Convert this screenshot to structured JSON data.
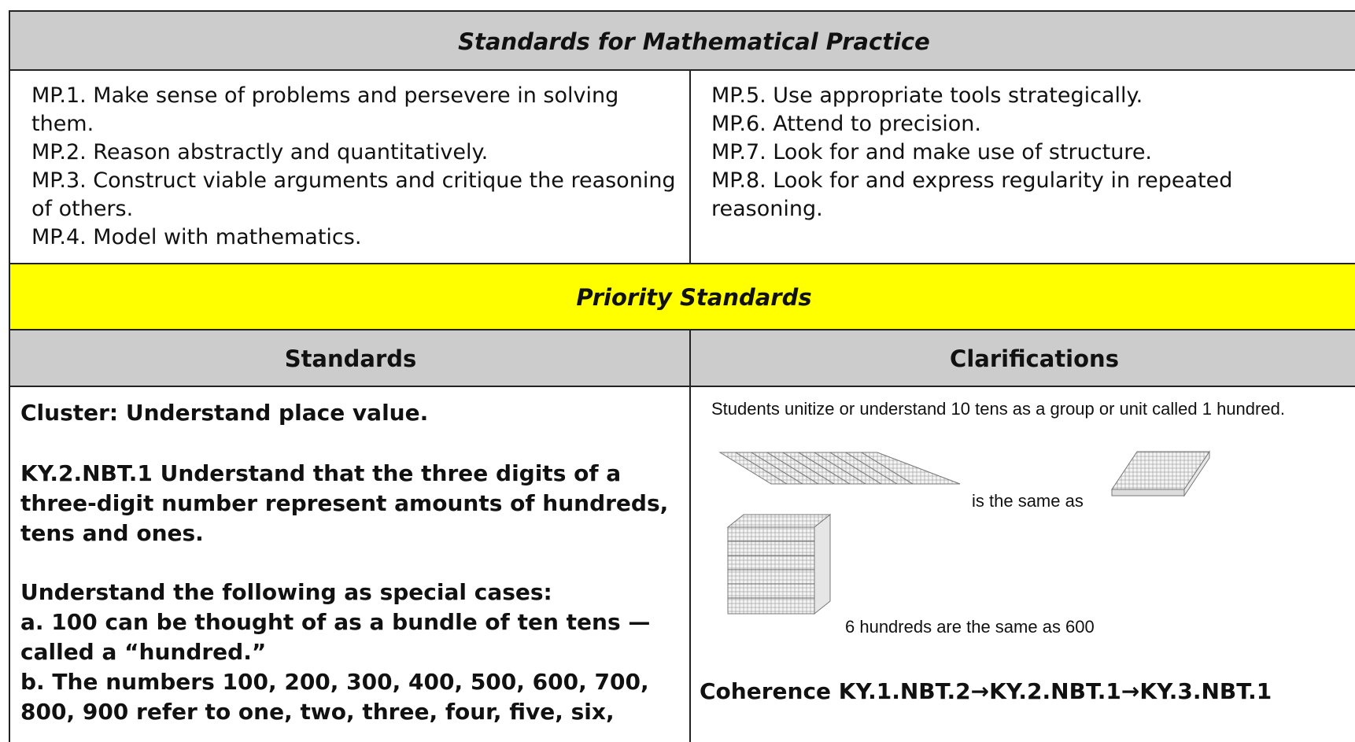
{
  "header": {
    "title": "Standards for Mathematical Practice"
  },
  "practices": {
    "left": [
      "MP.1. Make sense of problems and persevere in solving them.",
      "MP.2. Reason abstractly and quantitatively.",
      "MP.3. Construct viable arguments and critique the reasoning of others.",
      "MP.4. Model with mathematics."
    ],
    "right": [
      "MP.5. Use appropriate tools strategically.",
      "MP.6. Attend to precision.",
      "MP.7. Look for and make use of structure.",
      "MP.8. Look for and express regularity in repeated reasoning."
    ]
  },
  "priority": {
    "title": "Priority Standards"
  },
  "table": {
    "headers": [
      "Standards",
      "Clarifications"
    ],
    "standards": {
      "cluster": "Cluster: Understand place value.",
      "standard": "KY.2.NBT.1 Understand that the three digits of a three-digit number represent amounts of hundreds, tens and ones.",
      "special_heading": "Understand the following as special cases:",
      "items": [
        "a. 100 can be thought of as a bundle of ten tens — called a “hundred.”",
        "b. The numbers 100, 200, 300, 400, 500, 600, 700, 800, 900 refer to one, two, three, four, five, six,"
      ]
    },
    "clarifications": {
      "intro": "Students unitize or understand 10 tens as a group or unit called 1 hundred.",
      "same_as": "is the same as",
      "hundreds": "6 hundreds are the same as 600",
      "coherence": "Coherence KY.1.NBT.2→KY.2.NBT.1→KY.3.NBT.1"
    }
  }
}
